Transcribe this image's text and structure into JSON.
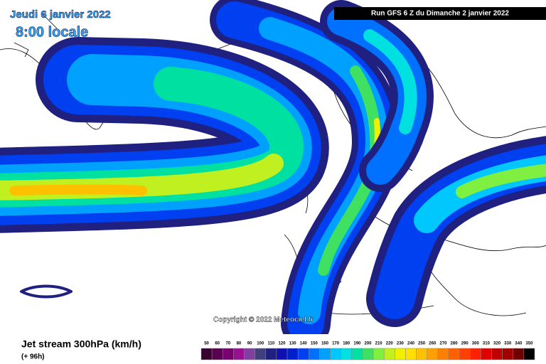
{
  "header": {
    "date": "Jeudi 6 janvier 2022",
    "time": "8:00 locale",
    "run": "Run GFS 6 Z du Dimanche 2 janvier 2022"
  },
  "copyright": "Copyright © 2022 Meteociel.fr",
  "legend": {
    "title": "Jet stream 300hPa (km/h)",
    "lead_time": "(+ 96h)",
    "scale": [
      {
        "value": 50,
        "color": "#3a0030"
      },
      {
        "value": 60,
        "color": "#5a0050"
      },
      {
        "value": 70,
        "color": "#7a0070"
      },
      {
        "value": 80,
        "color": "#9a1090"
      },
      {
        "value": 90,
        "color": "#8040a0"
      },
      {
        "value": 100,
        "color": "#404080"
      },
      {
        "value": 110,
        "color": "#202080"
      },
      {
        "value": 120,
        "color": "#1010b0"
      },
      {
        "value": 130,
        "color": "#0020d0"
      },
      {
        "value": 140,
        "color": "#0040f0"
      },
      {
        "value": 150,
        "color": "#0070ff"
      },
      {
        "value": 160,
        "color": "#00a0ff"
      },
      {
        "value": 170,
        "color": "#00c8ff"
      },
      {
        "value": 180,
        "color": "#00e0e0"
      },
      {
        "value": 190,
        "color": "#00e0a0"
      },
      {
        "value": 200,
        "color": "#40e060"
      },
      {
        "value": 210,
        "color": "#80f040"
      },
      {
        "value": 220,
        "color": "#c0f020"
      },
      {
        "value": 230,
        "color": "#f0f000"
      },
      {
        "value": 240,
        "color": "#ffe000"
      },
      {
        "value": 250,
        "color": "#ffc000"
      },
      {
        "value": 260,
        "color": "#ffa000"
      },
      {
        "value": 270,
        "color": "#ff8000"
      },
      {
        "value": 280,
        "color": "#ff6000"
      },
      {
        "value": 290,
        "color": "#ff4000"
      },
      {
        "value": 300,
        "color": "#ff2000"
      },
      {
        "value": 310,
        "color": "#e00000"
      },
      {
        "value": 320,
        "color": "#c00000"
      },
      {
        "value": 330,
        "color": "#a00000"
      },
      {
        "value": 340,
        "color": "#700000"
      },
      {
        "value": 350,
        "color": "#000000"
      }
    ]
  }
}
